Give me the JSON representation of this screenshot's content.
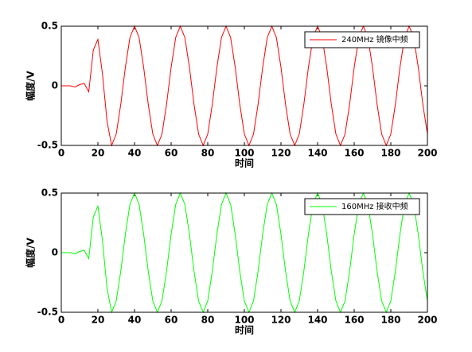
{
  "chart_data": [
    {
      "type": "line",
      "xlabel": "时间",
      "ylabel": "幅度/V",
      "legend": "upper right",
      "x": [
        0,
        2.5,
        5,
        7.5,
        10,
        12.5,
        15,
        17.5,
        20,
        22.5,
        25,
        27.5,
        30,
        32.5,
        35,
        37.5,
        40,
        42.5,
        45,
        47.5,
        50,
        52.5,
        55,
        57.5,
        60,
        62.5,
        65,
        67.5,
        70,
        72.5,
        75,
        77.5,
        80,
        82.5,
        85,
        87.5,
        90,
        92.5,
        95,
        97.5,
        100,
        102.5,
        105,
        107.5,
        110,
        112.5,
        115,
        117.5,
        120,
        122.5,
        125,
        127.5,
        130,
        132.5,
        135,
        137.5,
        140,
        142.5,
        145,
        147.5,
        150,
        152.5,
        155,
        157.5,
        160,
        162.5,
        165,
        167.5,
        170,
        172.5,
        175,
        177.5,
        180,
        182.5,
        185,
        187.5,
        190,
        192.5,
        195,
        197.5,
        200
      ],
      "series": [
        {
          "name": "240MHz 镜像中频",
          "color": "#ff0000",
          "values": [
            0,
            0,
            0,
            -0.01,
            0.01,
            0.02,
            -0.05,
            0.3,
            0.39,
            0.1,
            -0.3,
            -0.5,
            -0.405,
            -0.155,
            0.155,
            0.405,
            0.5,
            0.405,
            0.155,
            -0.155,
            -0.405,
            -0.5,
            -0.405,
            -0.155,
            0.155,
            0.405,
            0.5,
            0.405,
            0.155,
            -0.155,
            -0.405,
            -0.5,
            -0.405,
            -0.155,
            0.155,
            0.405,
            0.5,
            0.405,
            0.155,
            -0.155,
            -0.405,
            -0.5,
            -0.405,
            -0.155,
            0.155,
            0.405,
            0.5,
            0.405,
            0.155,
            -0.155,
            -0.405,
            -0.5,
            -0.405,
            -0.155,
            0.155,
            0.405,
            0.5,
            0.405,
            0.155,
            -0.155,
            -0.405,
            -0.5,
            -0.405,
            -0.155,
            0.155,
            0.405,
            0.5,
            0.405,
            0.155,
            -0.155,
            -0.405,
            -0.5,
            -0.405,
            -0.155,
            0.155,
            0.405,
            0.5,
            0.405,
            0.155,
            -0.155,
            -0.405
          ]
        }
      ],
      "xlim": [
        0,
        200
      ],
      "ylim": [
        -0.5,
        0.5
      ],
      "xticks": [
        0,
        20,
        40,
        60,
        80,
        100,
        120,
        140,
        160,
        180,
        200
      ],
      "yticks": [
        -0.5,
        0,
        0.5
      ]
    },
    {
      "type": "line",
      "xlabel": "时间",
      "ylabel": "幅度/V",
      "legend": "upper right",
      "x": [
        0,
        2.5,
        5,
        7.5,
        10,
        12.5,
        15,
        17.5,
        20,
        22.5,
        25,
        27.5,
        30,
        32.5,
        35,
        37.5,
        40,
        42.5,
        45,
        47.5,
        50,
        52.5,
        55,
        57.5,
        60,
        62.5,
        65,
        67.5,
        70,
        72.5,
        75,
        77.5,
        80,
        82.5,
        85,
        87.5,
        90,
        92.5,
        95,
        97.5,
        100,
        102.5,
        105,
        107.5,
        110,
        112.5,
        115,
        117.5,
        120,
        122.5,
        125,
        127.5,
        130,
        132.5,
        135,
        137.5,
        140,
        142.5,
        145,
        147.5,
        150,
        152.5,
        155,
        157.5,
        160,
        162.5,
        165,
        167.5,
        170,
        172.5,
        175,
        177.5,
        180,
        182.5,
        185,
        187.5,
        190,
        192.5,
        195,
        197.5,
        200
      ],
      "series": [
        {
          "name": "160MHz 接收中频",
          "color": "#00ff00",
          "values": [
            0,
            0,
            0,
            -0.01,
            0.01,
            0.02,
            -0.05,
            0.3,
            0.39,
            0.1,
            -0.3,
            -0.5,
            -0.405,
            -0.155,
            0.155,
            0.405,
            0.5,
            0.405,
            0.155,
            -0.155,
            -0.405,
            -0.5,
            -0.405,
            -0.155,
            0.155,
            0.405,
            0.5,
            0.405,
            0.155,
            -0.155,
            -0.405,
            -0.5,
            -0.405,
            -0.155,
            0.155,
            0.405,
            0.5,
            0.405,
            0.155,
            -0.155,
            -0.405,
            -0.5,
            -0.405,
            -0.155,
            0.155,
            0.405,
            0.5,
            0.405,
            0.155,
            -0.155,
            -0.405,
            -0.5,
            -0.405,
            -0.155,
            0.155,
            0.405,
            0.5,
            0.405,
            0.155,
            -0.155,
            -0.405,
            -0.5,
            -0.405,
            -0.155,
            0.155,
            0.405,
            0.5,
            0.405,
            0.155,
            -0.155,
            -0.405,
            -0.5,
            -0.405,
            -0.155,
            0.155,
            0.405,
            0.5,
            0.405,
            0.155,
            -0.155,
            -0.405
          ]
        }
      ],
      "xlim": [
        0,
        200
      ],
      "ylim": [
        -0.5,
        0.5
      ],
      "xticks": [
        0,
        20,
        40,
        60,
        80,
        100,
        120,
        140,
        160,
        180,
        200
      ],
      "yticks": [
        -0.5,
        0,
        0.5
      ]
    }
  ]
}
